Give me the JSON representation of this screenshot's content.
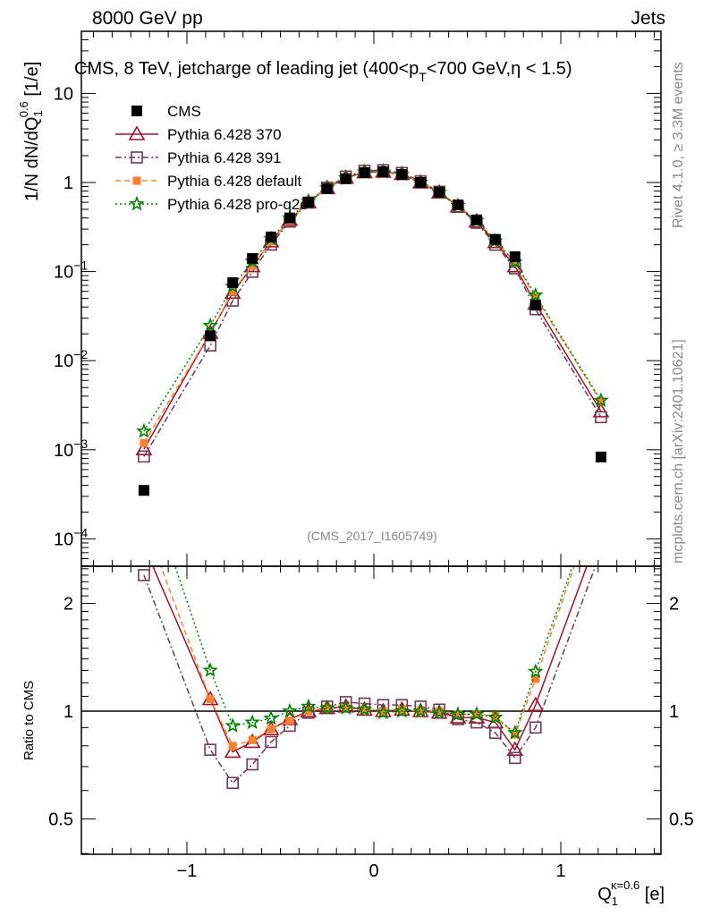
{
  "header": {
    "left": "8000 GeV pp",
    "right": "Jets",
    "title": "CMS, 8 TeV, jetcharge of leading jet (400<p",
    "title_sub": "T",
    "title_end": "<700 GeV,η < 1.5)",
    "side_rivet": "Rivet 4.1.0, ≥ 3.3M events",
    "side_mcplots": "mcplots.cern.ch [arXiv:2401.10621]",
    "analysis_id": "(CMS_2017_I1605749)"
  },
  "chart_data": [
    {
      "type": "line",
      "panel": "main",
      "ylabel": "1/N dN/dQ_1^0.6 [1/e]",
      "ylabel_parts": {
        "pre": "1/N dN/dQ",
        "sub": "1",
        "sup": "0.6",
        "post": " [1/e]"
      },
      "yscale": "log",
      "ylim": [
        5e-05,
        50
      ],
      "xlim": [
        -1.57,
        1.54
      ],
      "ytick_labels": [
        {
          "value": 10,
          "base": "10",
          "exp": ""
        },
        {
          "value": 1,
          "base": "1",
          "exp": ""
        },
        {
          "value": 0.1,
          "base": "10",
          "exp": "−1"
        },
        {
          "value": 0.01,
          "base": "10",
          "exp": "−2"
        },
        {
          "value": 0.001,
          "base": "10",
          "exp": "−3"
        },
        {
          "value": 0.0001,
          "base": "10",
          "exp": "−4"
        }
      ],
      "x": [
        -1.23,
        -0.875,
        -0.755,
        -0.65,
        -0.55,
        -0.45,
        -0.35,
        -0.25,
        -0.15,
        -0.05,
        0.05,
        0.15,
        0.25,
        0.35,
        0.45,
        0.55,
        0.65,
        0.755,
        0.865,
        1.215
      ],
      "data": {
        "name": "CMS",
        "values": [
          0.00035,
          0.019,
          0.075,
          0.14,
          0.245,
          0.4,
          0.6,
          0.85,
          1.1,
          1.29,
          1.32,
          1.23,
          1.0,
          0.78,
          0.56,
          0.38,
          0.23,
          0.147,
          0.042,
          0.00083
        ]
      },
      "legend": [
        "CMS",
        "Pythia 6.428 370",
        "Pythia 6.428 391",
        "Pythia 6.428 default",
        "Pythia 6.428 pro-q2o"
      ],
      "legend_position": "top-left"
    },
    {
      "type": "line",
      "panel": "ratio",
      "ylabel": "Ratio to CMS",
      "xlabel_parts": {
        "pre": "Q",
        "sub": "1",
        "sup": "κ=0.6",
        "post": " [e]"
      },
      "yscale": "log",
      "ylim": [
        0.4,
        2.54
      ],
      "ytick_labels": [
        {
          "value": 2,
          "label": "2"
        },
        {
          "value": 1,
          "label": "1"
        },
        {
          "value": 0.5,
          "label": "0.5"
        }
      ],
      "xtick_labels": [
        {
          "value": -1,
          "label": "−1"
        },
        {
          "value": 0,
          "label": "0"
        },
        {
          "value": 1,
          "label": "1"
        }
      ],
      "series": [
        {
          "name": "Pythia 6.428 370",
          "color": "#a31228",
          "marker": "triangle-open",
          "dash": "",
          "ratio": [
            2.9,
            1.08,
            0.77,
            0.82,
            0.89,
            0.95,
            1.0,
            1.02,
            1.03,
            1.01,
            1.0,
            1.01,
            1.0,
            0.99,
            0.96,
            0.96,
            0.93,
            0.78,
            1.04,
            3.25
          ]
        },
        {
          "name": "Pythia 6.428 391",
          "color": "#6e3a55",
          "marker": "square-open",
          "dash": "7,3,2,3",
          "ratio": [
            2.4,
            0.78,
            0.63,
            0.71,
            0.82,
            0.91,
            0.99,
            1.03,
            1.06,
            1.05,
            1.04,
            1.04,
            1.03,
            1.01,
            0.95,
            0.93,
            0.87,
            0.74,
            0.9,
            2.8
          ]
        },
        {
          "name": "Pythia 6.428 default",
          "color": "#ff8030",
          "marker": "square-filled",
          "dash": "6,4",
          "ratio": [
            3.4,
            1.08,
            0.8,
            0.83,
            0.89,
            0.94,
            1.0,
            1.02,
            1.02,
            1.01,
            1.0,
            1.01,
            1.0,
            1.0,
            0.98,
            0.98,
            0.97,
            0.86,
            1.23,
            4.2
          ]
        },
        {
          "name": "Pythia 6.428 pro-q2o",
          "color": "#008000",
          "marker": "star",
          "dash": "2,3",
          "ratio": [
            4.6,
            1.3,
            0.91,
            0.93,
            0.955,
            1.0,
            1.03,
            1.02,
            1.02,
            1.01,
            0.99,
            1.0,
            1.0,
            0.99,
            0.98,
            0.98,
            0.96,
            0.87,
            1.29,
            4.3
          ]
        }
      ]
    }
  ]
}
